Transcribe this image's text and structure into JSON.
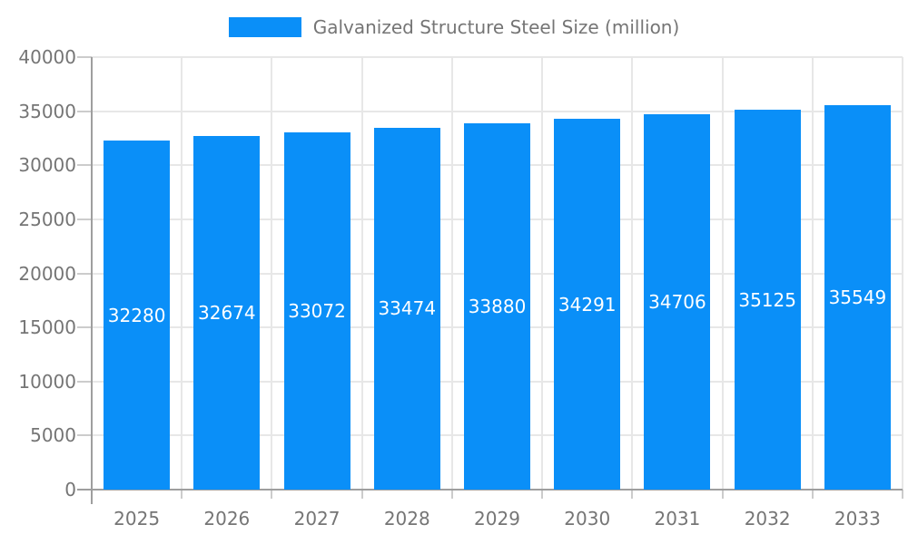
{
  "legend": {
    "items": [
      {
        "label": "Galvanized Structure Steel Size (million)",
        "color": "#0a8ff8"
      }
    ]
  },
  "chart_data": {
    "type": "bar",
    "title": "",
    "categories": [
      "2025",
      "2026",
      "2027",
      "2028",
      "2029",
      "2030",
      "2031",
      "2032",
      "2033"
    ],
    "series": [
      {
        "name": "Galvanized Structure Steel Size (million)",
        "color": "#0a8ff8",
        "values": [
          32280,
          32674,
          33072,
          33474,
          33880,
          34291,
          34706,
          35125,
          35549
        ]
      }
    ],
    "xlabel": "",
    "ylabel": "",
    "ylim": [
      0,
      40000
    ],
    "yticks": [
      0,
      5000,
      10000,
      15000,
      20000,
      25000,
      30000,
      35000,
      40000
    ],
    "grid": true,
    "legend_position": "top",
    "value_labels_position": "inside-center"
  },
  "colors": {
    "bar": "#0a8ff8",
    "axis_line": "#9e9e9e",
    "grid_line": "#e7e7e7",
    "tick_line": "#cccccc",
    "axis_label": "#757575",
    "value_label": "#ffffff",
    "background": "#ffffff"
  }
}
